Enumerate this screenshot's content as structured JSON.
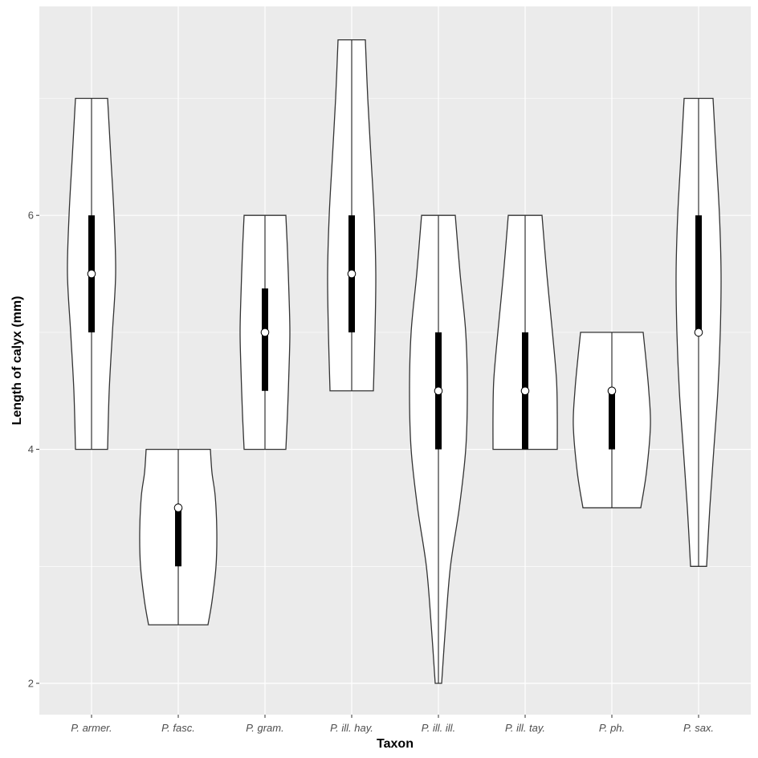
{
  "chart_data": {
    "type": "violin",
    "xlabel": "Taxon",
    "ylabel": "Length of calyx (mm)",
    "categories": [
      "P. armer.",
      "P. fasc.",
      "P. gram.",
      "P. ill. hay.",
      "P. ill. ill.",
      "P. ill. tay.",
      "P. ph.",
      "P. sax."
    ],
    "y_ticks": [
      2,
      4,
      6
    ],
    "ylim": [
      1.75,
      7.85
    ],
    "grid": true,
    "legend": "none",
    "series": [
      {
        "category": "P. armer.",
        "min": 4,
        "max": 7,
        "q1": 5,
        "median": 5.5,
        "q3": 6,
        "density": [
          [
            4,
            20
          ],
          [
            4.5,
            22
          ],
          [
            5,
            26
          ],
          [
            5.5,
            30
          ],
          [
            6,
            28
          ],
          [
            6.5,
            24
          ],
          [
            7,
            20
          ]
        ]
      },
      {
        "category": "P. fasc.",
        "min": 2.5,
        "max": 4,
        "q1": 3,
        "median": 3.5,
        "q3": 3.5,
        "density": [
          [
            2.5,
            37
          ],
          [
            2.7,
            42
          ],
          [
            3,
            47
          ],
          [
            3.3,
            48
          ],
          [
            3.6,
            46
          ],
          [
            3.8,
            42
          ],
          [
            4,
            40
          ]
        ]
      },
      {
        "category": "P. gram.",
        "min": 4,
        "max": 6,
        "q1": 4.5,
        "median": 5,
        "q3": 5.375,
        "density": [
          [
            4,
            26
          ],
          [
            4.3,
            28
          ],
          [
            4.7,
            30
          ],
          [
            5,
            31
          ],
          [
            5.3,
            30
          ],
          [
            5.7,
            28
          ],
          [
            6,
            26
          ]
        ]
      },
      {
        "category": "P. ill. hay.",
        "min": 4.5,
        "max": 7.5,
        "q1": 5,
        "median": 5.5,
        "q3": 6,
        "density": [
          [
            4.5,
            27
          ],
          [
            5,
            29
          ],
          [
            5.5,
            30
          ],
          [
            6,
            28
          ],
          [
            6.5,
            24
          ],
          [
            7,
            20
          ],
          [
            7.5,
            17
          ]
        ]
      },
      {
        "category": "P. ill. ill.",
        "min": 2,
        "max": 6,
        "q1": 4,
        "median": 4.5,
        "q3": 5,
        "density": [
          [
            2,
            4
          ],
          [
            2.5,
            9
          ],
          [
            3,
            15
          ],
          [
            3.5,
            26
          ],
          [
            4,
            34
          ],
          [
            4.5,
            36
          ],
          [
            5,
            34
          ],
          [
            5.5,
            27
          ],
          [
            6,
            21
          ]
        ]
      },
      {
        "category": "P. ill. tay.",
        "min": 4,
        "max": 6,
        "q1": 4,
        "median": 4.5,
        "q3": 5,
        "density": [
          [
            4,
            40
          ],
          [
            4.3,
            40
          ],
          [
            4.6,
            39
          ],
          [
            5,
            34
          ],
          [
            5.5,
            27
          ],
          [
            6,
            21
          ]
        ]
      },
      {
        "category": "P. ph.",
        "min": 3.5,
        "max": 5,
        "q1": 4,
        "median": 4.5,
        "q3": 4.5,
        "density": [
          [
            3.5,
            36
          ],
          [
            3.8,
            43
          ],
          [
            4.2,
            48
          ],
          [
            4.5,
            46
          ],
          [
            4.8,
            42
          ],
          [
            5,
            39
          ]
        ]
      },
      {
        "category": "P. sax.",
        "min": 3,
        "max": 7,
        "q1": 5,
        "median": 5,
        "q3": 6,
        "density": [
          [
            3,
            10
          ],
          [
            3.5,
            14
          ],
          [
            4,
            19
          ],
          [
            4.5,
            24
          ],
          [
            5,
            27
          ],
          [
            5.5,
            28
          ],
          [
            6,
            26
          ],
          [
            6.5,
            22
          ],
          [
            7,
            18
          ]
        ]
      }
    ],
    "colors": {
      "panel_background": "#ebebeb",
      "grid_major": "#ffffff",
      "violin_fill": "#ffffff",
      "violin_outline": "#333333",
      "box": "#000000",
      "median_point_fill": "#ffffff",
      "tick_text": "#4d4d4d",
      "title_text": "#000000"
    }
  }
}
